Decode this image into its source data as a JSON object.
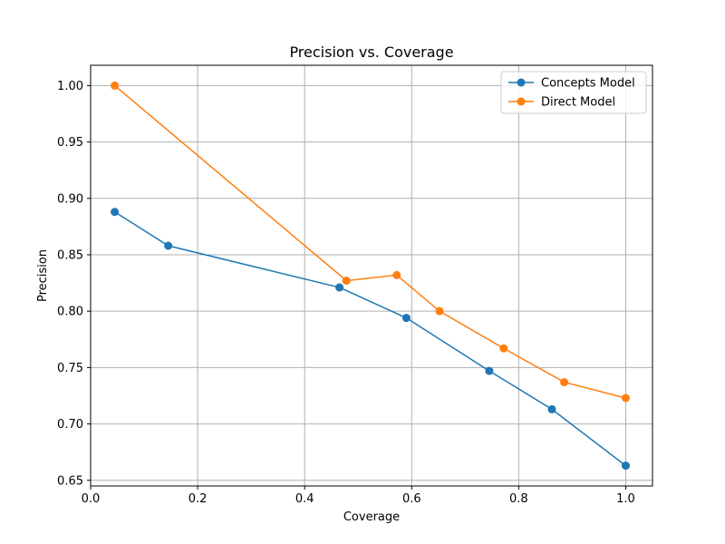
{
  "chart_data": {
    "type": "line",
    "title": "Precision vs. Coverage",
    "xlabel": "Coverage",
    "ylabel": "Precision",
    "xlim": [
      0.0,
      1.05
    ],
    "ylim": [
      0.645,
      1.018
    ],
    "x_ticks": [
      0.0,
      0.2,
      0.4,
      0.6,
      0.8,
      1.0
    ],
    "x_tick_labels": [
      "0.0",
      "0.2",
      "0.4",
      "0.6",
      "0.8",
      "1.0"
    ],
    "y_ticks": [
      0.65,
      0.7,
      0.75,
      0.8,
      0.85,
      0.9,
      0.95,
      1.0
    ],
    "y_tick_labels": [
      "0.65",
      "0.70",
      "0.75",
      "0.80",
      "0.85",
      "0.90",
      "0.95",
      "1.00"
    ],
    "grid": true,
    "legend_position": "top-right",
    "series": [
      {
        "name": "Concepts Model",
        "color": "#1f77b4",
        "marker": "circle",
        "x": [
          0.045,
          0.145,
          0.465,
          0.59,
          0.745,
          0.862,
          1.0
        ],
        "y": [
          0.888,
          0.858,
          0.821,
          0.794,
          0.747,
          0.713,
          0.663
        ]
      },
      {
        "name": "Direct Model",
        "color": "#ff7f0e",
        "marker": "circle",
        "x": [
          0.045,
          0.478,
          0.572,
          0.652,
          0.772,
          0.885,
          1.0
        ],
        "y": [
          1.0,
          0.827,
          0.832,
          0.8,
          0.767,
          0.737,
          0.723
        ]
      }
    ]
  }
}
